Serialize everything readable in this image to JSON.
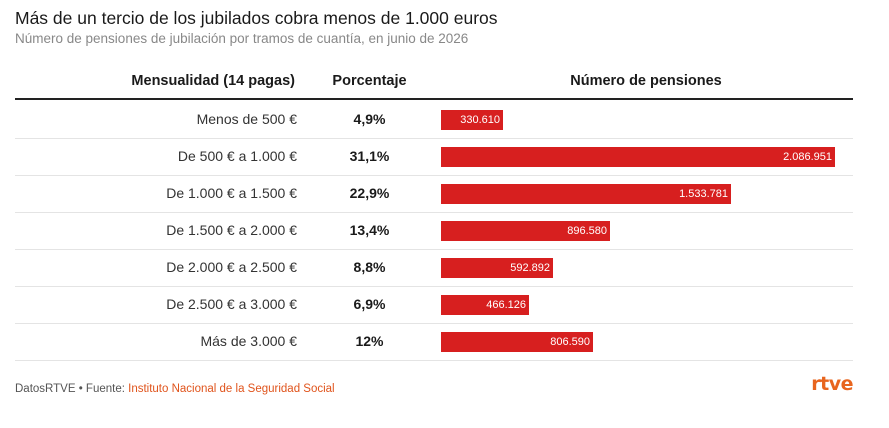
{
  "title": "Más de un tercio de los jubilados cobra menos de 1.000 euros",
  "subtitle": "Número de pensiones de jubilación por tramos de cuantía, en junio de 2026",
  "chart_data": {
    "type": "table",
    "columns": [
      "Mensualidad (14 pagas)",
      "Porcentaje",
      "Número de pensiones"
    ],
    "rows": [
      {
        "range": "Menos de 500 €",
        "pct": "4,9%",
        "count": 330610,
        "count_label": "330.610"
      },
      {
        "range": "De 500 € a 1.000 €",
        "pct": "31,1%",
        "count": 2086951,
        "count_label": "2.086.951"
      },
      {
        "range": "De 1.000 € a 1.500 €",
        "pct": "22,9%",
        "count": 1533781,
        "count_label": "1.533.781"
      },
      {
        "range": "De 1.500 € a 2.000 €",
        "pct": "13,4%",
        "count": 896580,
        "count_label": "896.580"
      },
      {
        "range": "De 2.000 € a 2.500 €",
        "pct": "8,8%",
        "count": 592892,
        "count_label": "592.892"
      },
      {
        "range": "De 2.500 € a 3.000 €",
        "pct": "6,9%",
        "count": 466126,
        "count_label": "466.126"
      },
      {
        "range": "Más de 3.000 €",
        "pct": "12%",
        "count": 806590,
        "count_label": "806.590"
      }
    ],
    "bar_color": "#d71f1f",
    "max_value": 2086951
  },
  "footer": {
    "prefix": "DatosRTVE • Fuente: ",
    "source": "Instituto Nacional de la Seguridad Social"
  },
  "logo_text": "rtve"
}
